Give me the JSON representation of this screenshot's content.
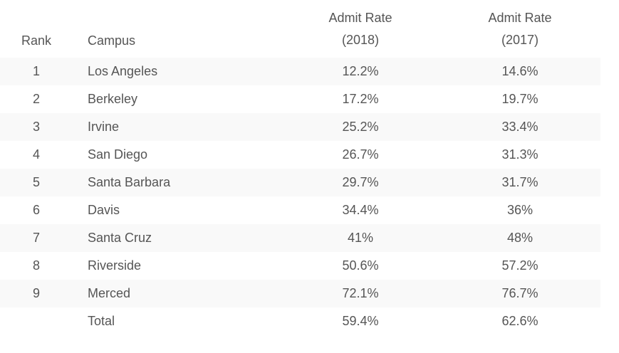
{
  "header": {
    "rank": "Rank",
    "campus": "Campus",
    "col2018_line1": "Admit Rate",
    "col2018_line2": "(2018)",
    "col2017_line1": "Admit Rate",
    "col2017_line2": "(2017)"
  },
  "rows": [
    {
      "rank": "1",
      "campus": "Los Angeles",
      "rate2018": "12.2%",
      "rate2017": "14.6%"
    },
    {
      "rank": "2",
      "campus": "Berkeley",
      "rate2018": "17.2%",
      "rate2017": "19.7%"
    },
    {
      "rank": "3",
      "campus": "Irvine",
      "rate2018": "25.2%",
      "rate2017": "33.4%"
    },
    {
      "rank": "4",
      "campus": "San Diego",
      "rate2018": "26.7%",
      "rate2017": "31.3%"
    },
    {
      "rank": "5",
      "campus": "Santa Barbara",
      "rate2018": "29.7%",
      "rate2017": "31.7%"
    },
    {
      "rank": "6",
      "campus": "Davis",
      "rate2018": "34.4%",
      "rate2017": "36%"
    },
    {
      "rank": "7",
      "campus": "Santa Cruz",
      "rate2018": "41%",
      "rate2017": "48%"
    },
    {
      "rank": "8",
      "campus": "Riverside",
      "rate2018": "50.6%",
      "rate2017": "57.2%"
    },
    {
      "rank": "9",
      "campus": "Merced",
      "rate2018": "72.1%",
      "rate2017": "76.7%"
    },
    {
      "rank": "",
      "campus": "Total",
      "rate2018": "59.4%",
      "rate2017": "62.6%"
    }
  ],
  "colors": {
    "text": "#555555",
    "row_shade": "#f9f9f9"
  }
}
